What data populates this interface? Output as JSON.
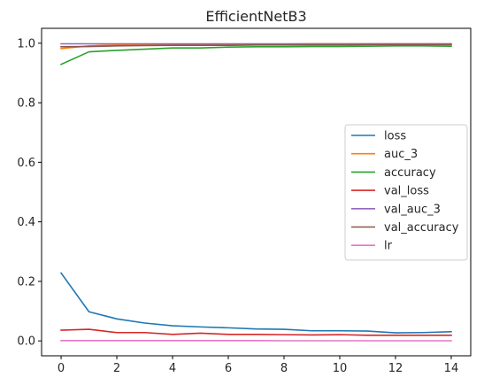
{
  "chart_data": {
    "type": "line",
    "title": "EfficientNetB3",
    "xlabel": "",
    "ylabel": "",
    "x": [
      0,
      1,
      2,
      3,
      4,
      5,
      6,
      7,
      8,
      9,
      10,
      11,
      12,
      13,
      14
    ],
    "xlim": [
      -0.7,
      14.7
    ],
    "ylim": [
      -0.05,
      1.05
    ],
    "xticks": [
      0,
      2,
      4,
      6,
      8,
      10,
      12,
      14
    ],
    "yticks": [
      0.0,
      0.2,
      0.4,
      0.6,
      0.8,
      1.0
    ],
    "ytick_labels": [
      "0.0",
      "0.2",
      "0.4",
      "0.6",
      "0.8",
      "1.0"
    ],
    "grid": false,
    "legend_position": "center-right",
    "series": [
      {
        "name": "loss",
        "color": "#1f77b4",
        "values": [
          0.228,
          0.098,
          0.074,
          0.06,
          0.051,
          0.047,
          0.044,
          0.04,
          0.039,
          0.034,
          0.034,
          0.033,
          0.027,
          0.028,
          0.031
        ]
      },
      {
        "name": "auc_3",
        "color": "#ff7f0e",
        "values": [
          0.982,
          0.991,
          0.994,
          0.995,
          0.996,
          0.996,
          0.997,
          0.997,
          0.997,
          0.998,
          0.998,
          0.998,
          0.998,
          0.998,
          0.998
        ]
      },
      {
        "name": "accuracy",
        "color": "#2ca02c",
        "values": [
          0.929,
          0.971,
          0.976,
          0.98,
          0.984,
          0.984,
          0.987,
          0.988,
          0.988,
          0.989,
          0.989,
          0.99,
          0.991,
          0.991,
          0.99
        ]
      },
      {
        "name": "val_loss",
        "color": "#d62728",
        "values": [
          0.036,
          0.039,
          0.028,
          0.028,
          0.022,
          0.026,
          0.022,
          0.022,
          0.021,
          0.02,
          0.021,
          0.019,
          0.019,
          0.019,
          0.019
        ]
      },
      {
        "name": "val_auc_3",
        "color": "#9467bd",
        "values": [
          0.998,
          0.998,
          0.998,
          0.998,
          0.998,
          0.998,
          0.998,
          0.998,
          0.998,
          0.998,
          0.998,
          0.998,
          0.998,
          0.998,
          0.998
        ]
      },
      {
        "name": "val_accuracy",
        "color": "#8c564b",
        "values": [
          0.988,
          0.989,
          0.991,
          0.992,
          0.993,
          0.993,
          0.993,
          0.994,
          0.994,
          0.994,
          0.994,
          0.995,
          0.995,
          0.995,
          0.995
        ]
      },
      {
        "name": "lr",
        "color": "#e377c2",
        "values": [
          0.001,
          0.001,
          0.001,
          0.001,
          0.001,
          0.001,
          0.001,
          0.001,
          0.0005,
          0.0005,
          0.0005,
          0.0005,
          0.0005,
          0.0005,
          0.0005
        ]
      }
    ]
  }
}
